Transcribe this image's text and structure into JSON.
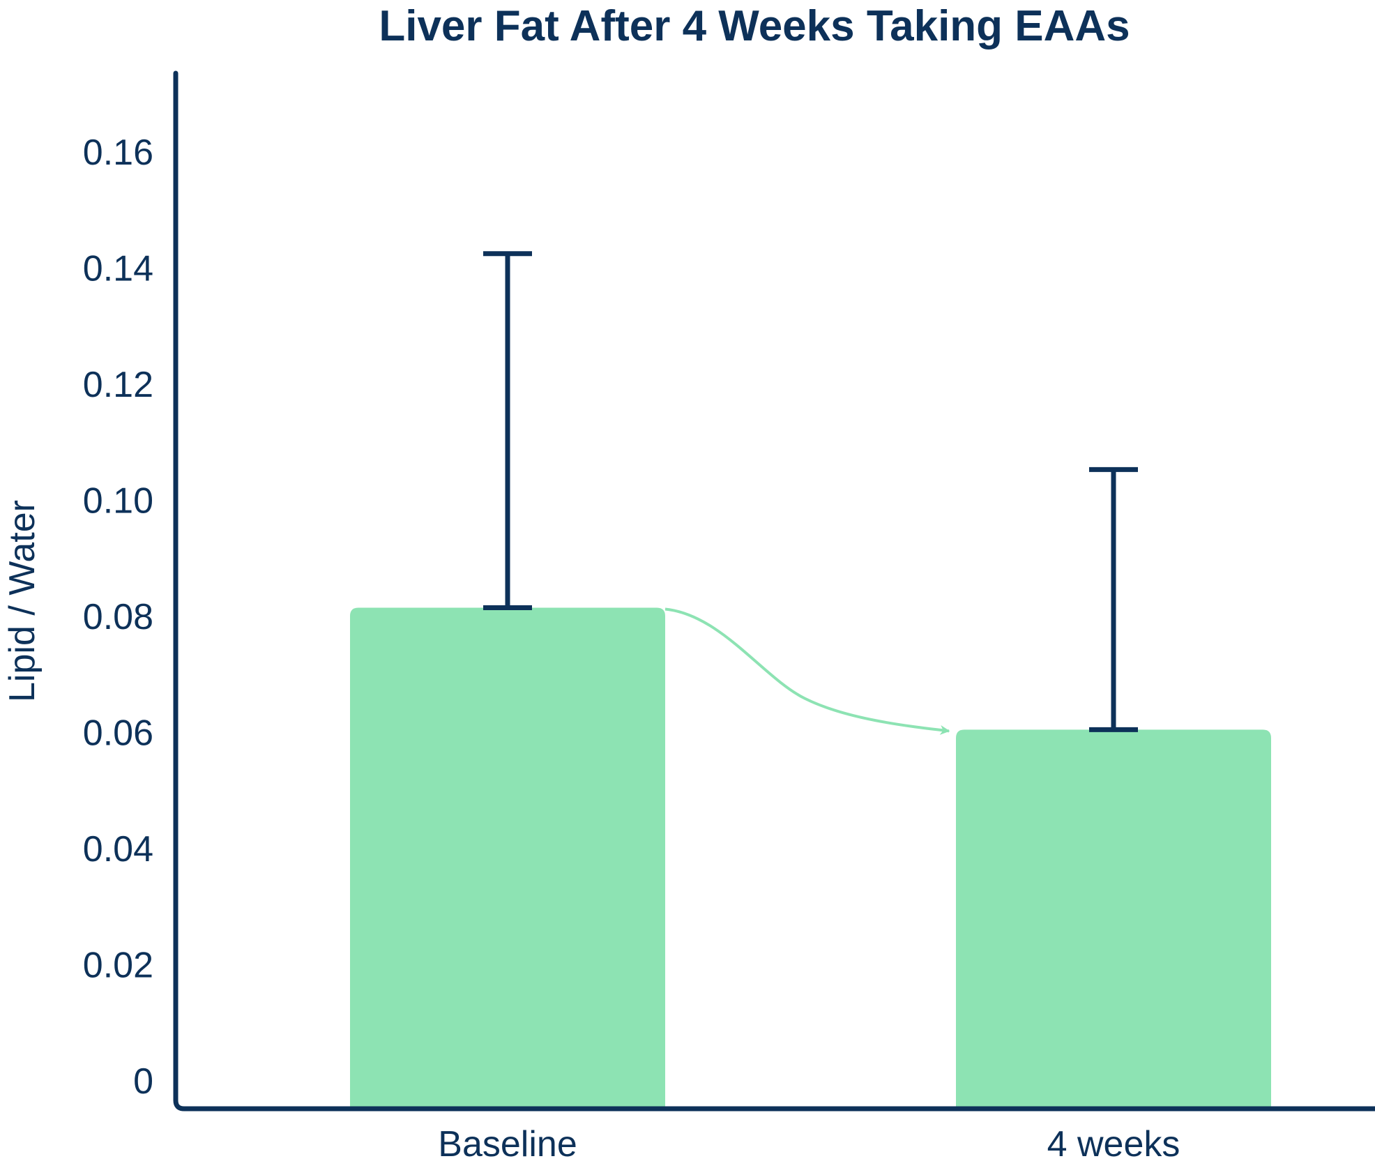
{
  "chart_data": {
    "type": "bar",
    "title": "Liver Fat After 4 Weeks Taking EAAs",
    "xlabel": "",
    "ylabel": "Lipid / Water",
    "categories": [
      "Baseline",
      "4 weeks"
    ],
    "values": [
      0.0815,
      0.0605
    ],
    "error_upper": [
      0.1425,
      0.1053
    ],
    "ylim": [
      0,
      0.17
    ],
    "yticks": [
      0,
      0.02,
      0.04,
      0.06,
      0.08,
      0.1,
      0.12,
      0.14,
      0.16
    ],
    "ytick_labels": [
      "0",
      "0.02",
      "0.04",
      "0.06",
      "0.08",
      "0.10",
      "0.12",
      "0.14",
      "0.16"
    ],
    "grid": false,
    "legend": "none",
    "annotations": [
      "curved arrow from Baseline bar to 4 weeks bar"
    ],
    "colors": {
      "bar": "#8de3b3",
      "axis": "#0d3159",
      "text": "#0d3159",
      "arrow": "#8de3b3"
    }
  }
}
